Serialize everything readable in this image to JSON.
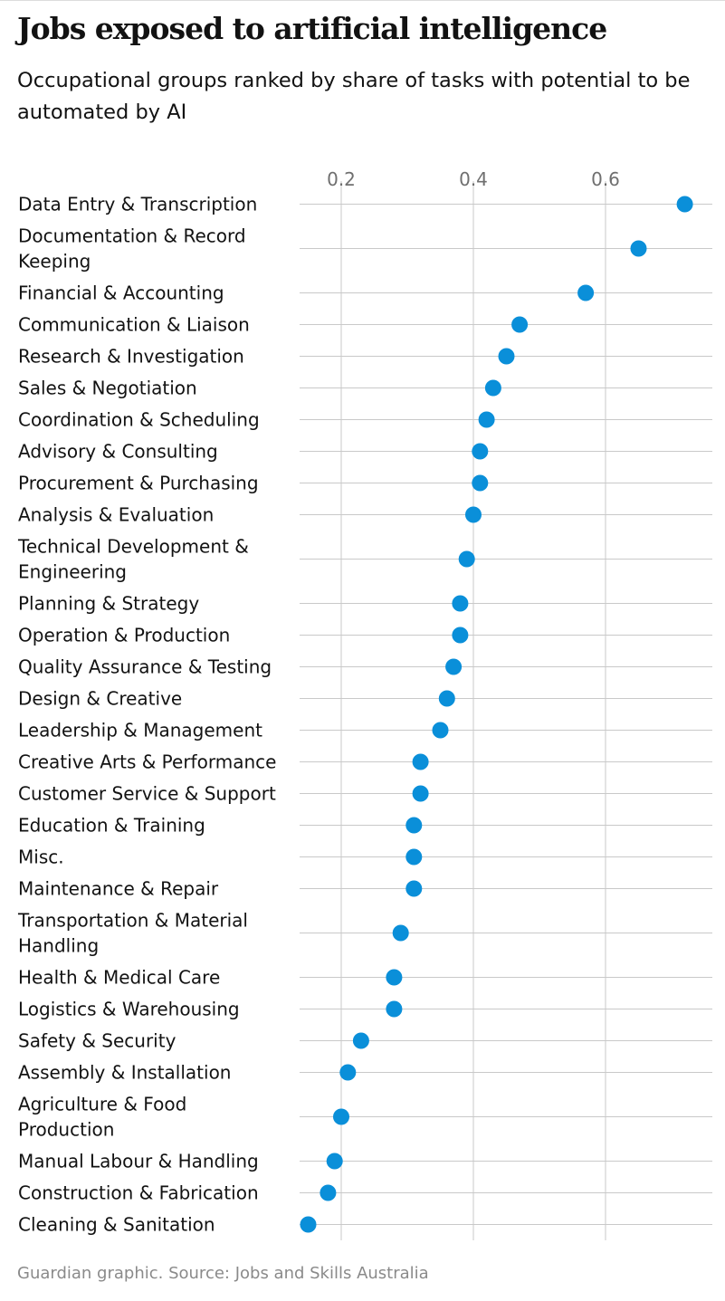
{
  "header": {
    "title": "Jobs exposed to artificial intelligence",
    "subtitle": "Occupational groups ranked by share of tasks with potential to be automated by AI"
  },
  "footer": {
    "source": "Guardian graphic. Source: Jobs and Skills Australia"
  },
  "colors": {
    "dot": "#0a8fd9",
    "gridline": "#c9c9c9",
    "label": "#121212",
    "tick": "#6f6f6f",
    "source": "#8a8a8a"
  },
  "chart_data": {
    "type": "scatter",
    "title": "Jobs exposed to artificial intelligence",
    "subtitle": "Occupational groups ranked by share of tasks with potential to be automated by AI",
    "xlabel": "",
    "ylabel": "",
    "xlim": [
      0.15,
      0.73
    ],
    "xticks": [
      0.2,
      0.4,
      0.6
    ],
    "xtick_labels": [
      "0.2",
      "0.4",
      "0.6"
    ],
    "grid": true,
    "legend": "none",
    "categories": [
      "Data Entry & Transcription",
      "Documentation & Record Keeping",
      "Financial & Accounting",
      "Communication & Liaison",
      "Research & Investigation",
      "Sales & Negotiation",
      "Coordination & Scheduling",
      "Advisory & Consulting",
      "Procurement & Purchasing",
      "Analysis & Evaluation",
      "Technical Development & Engineering",
      "Planning & Strategy",
      "Operation & Production",
      "Quality Assurance & Testing",
      "Design & Creative",
      "Leadership & Management",
      "Creative Arts & Performance",
      "Customer Service & Support",
      "Education & Training",
      "Misc.",
      "Maintenance & Repair",
      "Transportation & Material Handling",
      "Health & Medical Care",
      "Logistics & Warehousing",
      "Safety & Security",
      "Assembly & Installation",
      "Agriculture & Food Production",
      "Manual Labour & Handling",
      "Construction & Fabrication",
      "Cleaning & Sanitation"
    ],
    "values": [
      0.72,
      0.65,
      0.57,
      0.47,
      0.45,
      0.43,
      0.42,
      0.41,
      0.41,
      0.4,
      0.39,
      0.38,
      0.38,
      0.37,
      0.36,
      0.35,
      0.32,
      0.32,
      0.31,
      0.31,
      0.31,
      0.29,
      0.28,
      0.28,
      0.23,
      0.21,
      0.2,
      0.19,
      0.18,
      0.15
    ]
  }
}
